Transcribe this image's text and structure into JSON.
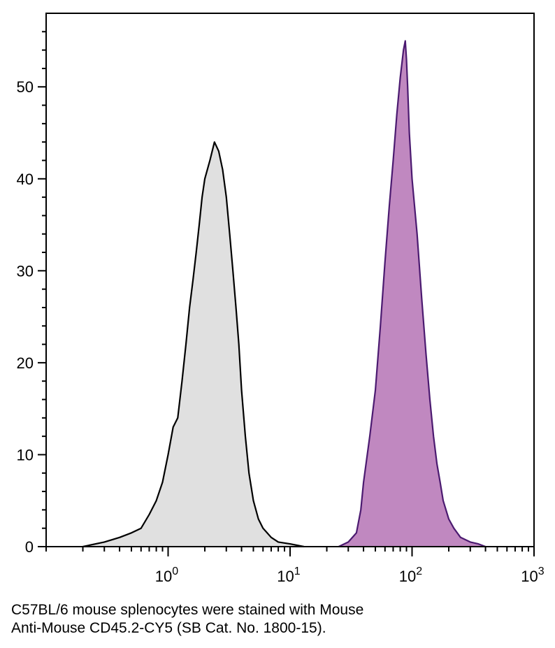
{
  "chart_data": {
    "type": "area",
    "title": "",
    "xlabel": "",
    "ylabel": "",
    "x_scale": "log",
    "xlim": [
      0.1,
      1000
    ],
    "ylim": [
      0,
      58
    ],
    "x_ticks": [
      {
        "value": 1,
        "base": "10",
        "exp": "0"
      },
      {
        "value": 10,
        "base": "10",
        "exp": "1"
      },
      {
        "value": 100,
        "base": "10",
        "exp": "2"
      },
      {
        "value": 1000,
        "base": "10",
        "exp": "3"
      }
    ],
    "y_ticks": [
      0,
      10,
      20,
      30,
      40,
      50
    ],
    "grid": false,
    "legend": "none",
    "series": [
      {
        "fill": "#e0e0e0",
        "stroke": "#000000",
        "x": [
          0.2,
          0.3,
          0.4,
          0.5,
          0.6,
          0.7,
          0.8,
          0.9,
          1.0,
          1.1,
          1.2,
          1.3,
          1.4,
          1.5,
          1.6,
          1.7,
          1.8,
          1.9,
          2.0,
          2.2,
          2.4,
          2.6,
          2.8,
          3.0,
          3.2,
          3.4,
          3.6,
          3.8,
          4.0,
          4.3,
          4.6,
          5.0,
          5.5,
          6.0,
          7.0,
          8.0,
          10.0,
          13.0
        ],
        "y": [
          0,
          0.5,
          1,
          1.5,
          2,
          3.5,
          5,
          7,
          10,
          13,
          14,
          18,
          22,
          26,
          29,
          32,
          35,
          38,
          40,
          42,
          44,
          43,
          41,
          38,
          34,
          30,
          26,
          22,
          17,
          12,
          8,
          5,
          3,
          2,
          1,
          0.5,
          0.3,
          0
        ]
      },
      {
        "fill": "#c088c0",
        "stroke": "#4b1a70",
        "x": [
          25,
          30,
          35,
          38,
          40,
          45,
          50,
          55,
          60,
          65,
          70,
          75,
          80,
          85,
          88,
          90,
          92,
          95,
          100,
          110,
          120,
          130,
          140,
          150,
          160,
          170,
          180,
          200,
          220,
          250,
          300,
          350,
          400
        ],
        "y": [
          0,
          0.5,
          1.5,
          4,
          7,
          12,
          17,
          24,
          31,
          37,
          42,
          47,
          51,
          54,
          55,
          53,
          50,
          45,
          40,
          34,
          27,
          21,
          16,
          12,
          9,
          7,
          5,
          3,
          2,
          1,
          0.5,
          0.3,
          0
        ]
      }
    ]
  },
  "caption": {
    "line1": "C57BL/6 mouse splenocytes were stained with Mouse",
    "line2": "Anti-Mouse CD45.2-CY5 (SB Cat. No. 1800-15)."
  }
}
